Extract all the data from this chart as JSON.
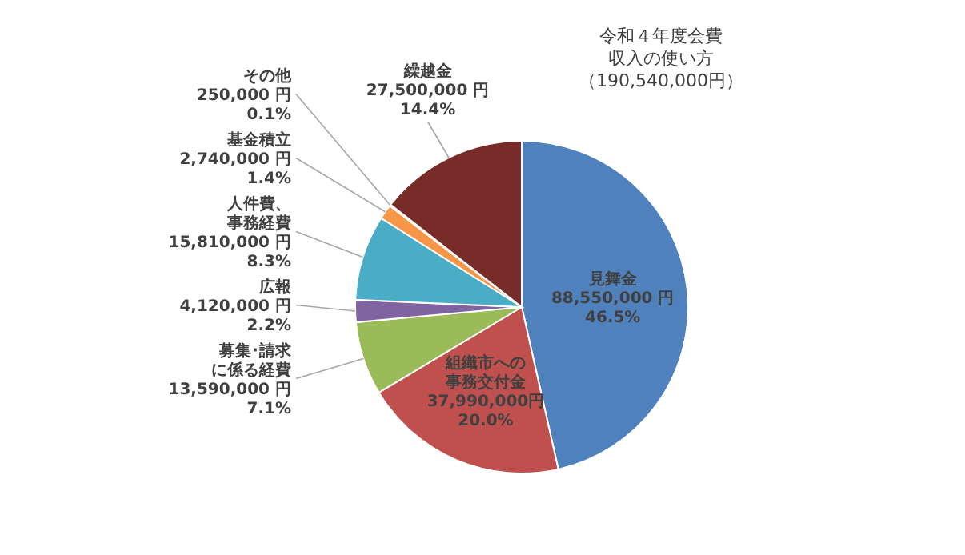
{
  "chart_data": {
    "type": "pie",
    "title": "令和４年度会費収入の使い方（190,540,000円）",
    "categories": [
      "見舞金",
      "組織市への事務交付金",
      "募集･請求に係る経費",
      "広報",
      "人件費、事務経費",
      "基金積立",
      "その他",
      "繰越金"
    ],
    "values": [
      88550000,
      37990000,
      13590000,
      4120000,
      15810000,
      2740000,
      250000,
      27500000
    ],
    "value_labels": [
      "88,550,000 円\n46.5%",
      "37,990,000円\n20.0%",
      "13,590,000 円\n7.1%",
      "4,120,000 円\n2.2%",
      "15,810,000 円\n8.3%",
      "2,740,000 円\n1.4%",
      "250,000 円\n0.1%",
      "27,500,000 円\n14.4%"
    ],
    "colors": [
      "#4f81bd",
      "#c0504d",
      "#9bbb59",
      "#8064a2",
      "#4bacc6",
      "#f79646",
      "#c3d0e6",
      "#772c2a"
    ]
  }
}
